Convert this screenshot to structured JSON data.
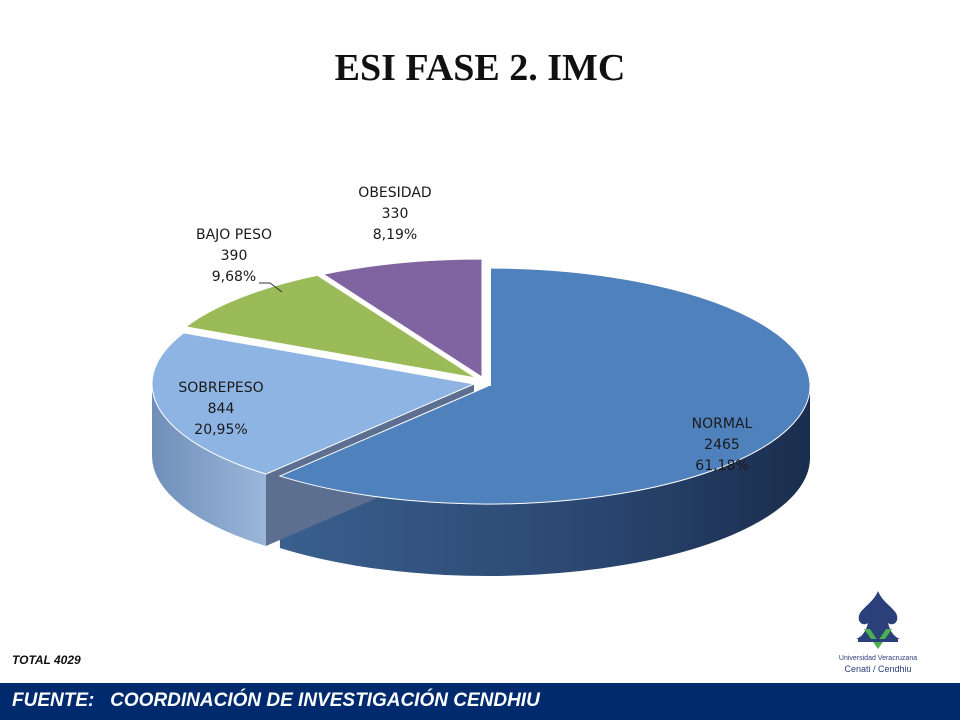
{
  "title": "ESI FASE 2. IMC",
  "total_label": "TOTAL  4029",
  "footer": "FUENTE:   COORDINACIÓN DE INVESTIGACIÓN CENDHIU",
  "logo": {
    "line1": "Universidad Veracruzana",
    "line2": "Cenati / Cendhiu"
  },
  "chart_data": {
    "type": "pie",
    "title": "ESI FASE 2. IMC",
    "three_d": true,
    "exploded": true,
    "total": 4029,
    "slices": [
      {
        "label": "NORMAL",
        "value": 2465,
        "percent": "61,18%",
        "color": "#4f81bd"
      },
      {
        "label": "SOBREPESO",
        "value": 844,
        "percent": "20,95%",
        "color": "#8eb4e3"
      },
      {
        "label": "BAJO PESO",
        "value": 390,
        "percent": "9,68%",
        "color": "#9bbb59"
      },
      {
        "label": "OBESIDAD",
        "value": 330,
        "percent": "8,19%",
        "color": "#8064a2"
      }
    ]
  }
}
